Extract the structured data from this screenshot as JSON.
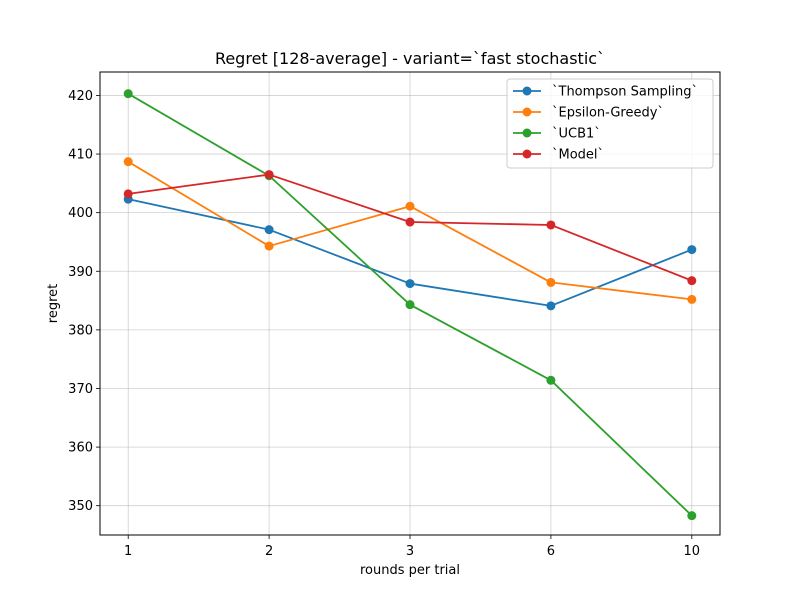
{
  "chart_data": {
    "type": "line",
    "title": "Regret [128-average] - variant=`fast stochastic`",
    "xlabel": "rounds per trial",
    "ylabel": "regret",
    "categories": [
      "1",
      "2",
      "3",
      "6",
      "10"
    ],
    "ylim": [
      345,
      424
    ],
    "yticks": [
      350,
      360,
      370,
      380,
      390,
      400,
      410,
      420
    ],
    "grid": true,
    "legend_position": "top-right",
    "series": [
      {
        "name": "`Thompson Sampling`",
        "color": "#1f77b4",
        "values": [
          402.3,
          397.1,
          387.9,
          384.1,
          393.7
        ]
      },
      {
        "name": "`Epsilon-Greedy`",
        "color": "#ff7f0e",
        "values": [
          408.7,
          394.3,
          401.1,
          388.1,
          385.2
        ]
      },
      {
        "name": "`UCB1`",
        "color": "#2ca02c",
        "values": [
          420.3,
          406.3,
          384.3,
          371.4,
          348.3
        ]
      },
      {
        "name": "`Model`",
        "color": "#d62728",
        "values": [
          403.2,
          406.5,
          398.4,
          397.9,
          388.4
        ]
      }
    ]
  }
}
